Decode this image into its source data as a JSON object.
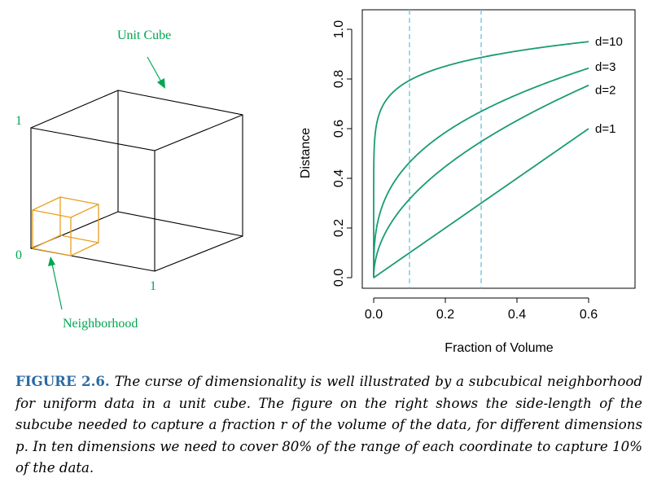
{
  "left_figure": {
    "unit_cube_label": "Unit Cube",
    "neighborhood_label": "Neighborhood",
    "tick_1_vertical": "1",
    "tick_0": "0",
    "tick_1_horizontal": "1",
    "colors": {
      "label": "#00a651",
      "cube": "#000000",
      "neighborhood": "#e8a020"
    }
  },
  "chart_data": {
    "type": "line",
    "xlabel": "Fraction of Volume",
    "ylabel": "Distance",
    "xlim": [
      0,
      0.6
    ],
    "ylim": [
      0,
      1
    ],
    "xticks": [
      "0.0",
      "0.2",
      "0.4",
      "0.6"
    ],
    "yticks": [
      "0.0",
      "0.2",
      "0.4",
      "0.6",
      "0.8",
      "1.0"
    ],
    "function": "distance = r^(1/d)",
    "series": [
      {
        "name": "d=1",
        "d": 1
      },
      {
        "name": "d=2",
        "d": 2
      },
      {
        "name": "d=3",
        "d": 3
      },
      {
        "name": "d=10",
        "d": 10
      }
    ],
    "reference_lines_x": [
      0.1,
      0.3
    ],
    "colors": {
      "curve": "#1a9b74",
      "reference": "#6ec0e0"
    }
  },
  "caption": {
    "label": "FIGURE 2.6.",
    "text": "The curse of dimensionality is well illustrated by a subcubical neighborhood for uniform data in a unit cube. The figure on the right shows the side-length of the subcube needed to capture a fraction r of the volume of the data, for different dimensions p. In ten dimensions we need to cover 80% of the range of each coordinate to capture 10% of the data."
  }
}
